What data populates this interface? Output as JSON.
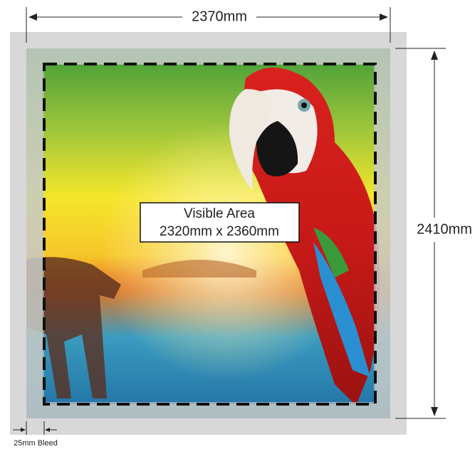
{
  "dimensions": {
    "width": "2370mm",
    "height": "2410mm"
  },
  "visible_area": {
    "title": "Visible Area",
    "size": "2320mm x 2360mm"
  },
  "bleed": "25mm Bleed"
}
